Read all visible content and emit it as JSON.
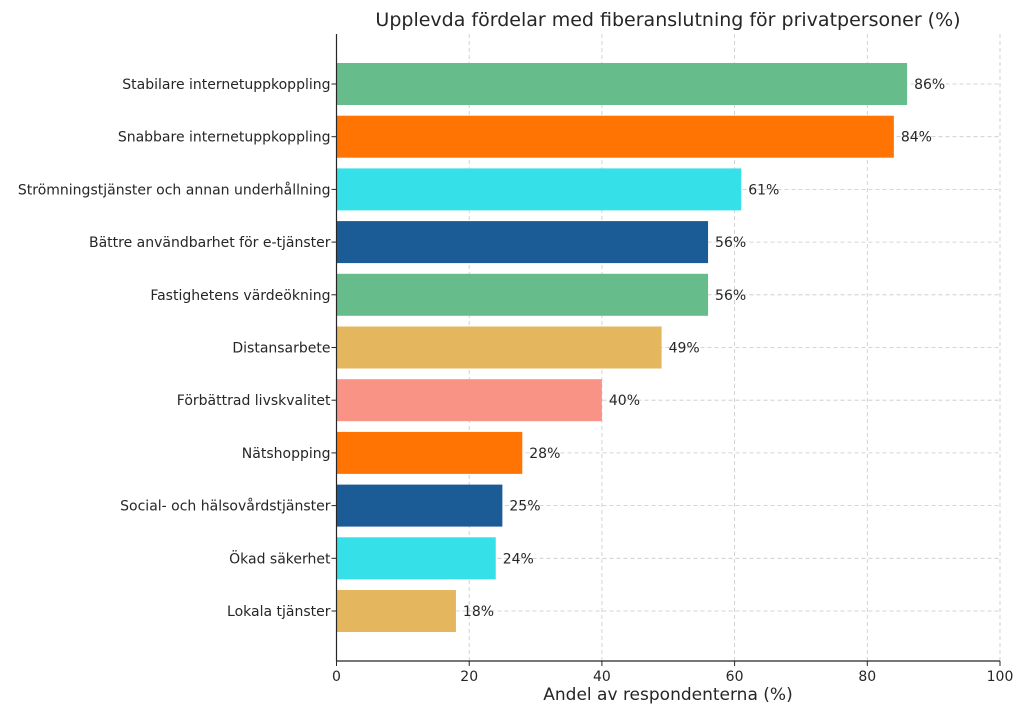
{
  "chart_data": {
    "type": "bar",
    "orientation": "horizontal",
    "title": "Upplevda fördelar med fiberanslutning för privatpersoner (%)",
    "xlabel": "Andel av respondenterna (%)",
    "ylabel": "",
    "xlim": [
      0,
      100
    ],
    "xticks": [
      0,
      20,
      40,
      60,
      80,
      100
    ],
    "grid": true,
    "categories": [
      "Stabilare internetuppkoppling",
      "Snabbare internetuppkoppling",
      "Strömningstjänster och annan underhållning",
      "Bättre användbarhet för e-tjänster",
      "Fastighetens värdeökning",
      "Distansarbete",
      "Förbättrad livskvalitet",
      "Nätshopping",
      "Social- och hälsovårdstjänster",
      "Ökad säkerhet",
      "Lokala tjänster"
    ],
    "values": [
      86,
      84,
      61,
      56,
      56,
      49,
      40,
      28,
      25,
      24,
      18
    ],
    "data_labels": [
      "86%",
      "84%",
      "61%",
      "56%",
      "56%",
      "49%",
      "40%",
      "28%",
      "25%",
      "24%",
      "18%"
    ],
    "colors": [
      "#66bd8b",
      "#ff7403",
      "#35e0e8",
      "#1b5c96",
      "#66bd8b",
      "#e4b65d",
      "#f99385",
      "#ff7403",
      "#1b5c96",
      "#35e0e8",
      "#e4b65d"
    ]
  }
}
